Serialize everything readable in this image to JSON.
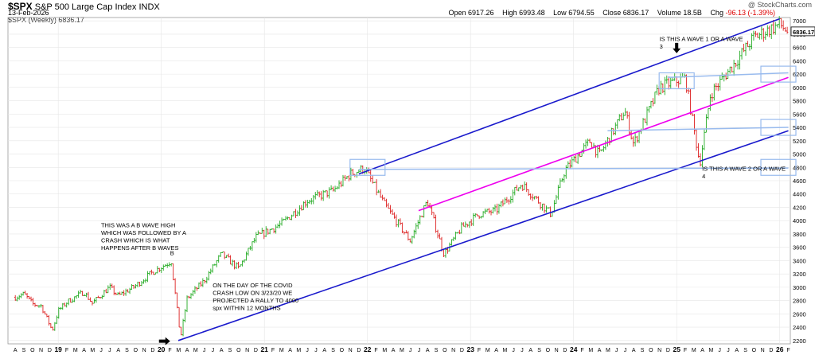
{
  "header": {
    "symbol": "$SPX",
    "name": "S&P 500 Large Cap Index",
    "exchange": "INDX",
    "date": "13-Feb-2026",
    "legend": "$SPX (Weekly) 6836.17",
    "brand": "@ StockCharts.com",
    "open_label": "Open",
    "open": "6917.26",
    "high_label": "High",
    "high": "6993.48",
    "low_label": "Low",
    "low": "6794.55",
    "close_label": "Close",
    "close": "6836.17",
    "volume_label": "Volume",
    "volume": "18.5B",
    "chg_label": "Chg",
    "chg": "-96.13 (-1.39%)"
  },
  "colors": {
    "up_bar": "#22aa22",
    "down_bar": "#dd2222",
    "channel": "#1a1acc",
    "midline": "#ee00ee",
    "level": "#99bbee",
    "box": "#99bbee",
    "last_price_box": "#000000"
  },
  "chart_data": {
    "type": "ohlc-weekly",
    "ylim": [
      2150,
      7050
    ],
    "y_ticks": [
      2200,
      2400,
      2600,
      2800,
      3000,
      3200,
      3400,
      3600,
      3800,
      4000,
      4200,
      4400,
      4600,
      4800,
      5000,
      5200,
      5400,
      5600,
      5800,
      6000,
      6200,
      6400,
      6600,
      6800,
      7000
    ],
    "last_price": "6836.17",
    "x_labels": [
      "A",
      "S",
      "O",
      "N",
      "D",
      "19",
      "F",
      "M",
      "A",
      "M",
      "J",
      "J",
      "A",
      "S",
      "O",
      "N",
      "D",
      "20",
      "F",
      "M",
      "A",
      "M",
      "J",
      "J",
      "A",
      "S",
      "O",
      "N",
      "D",
      "21",
      "F",
      "M",
      "A",
      "M",
      "J",
      "J",
      "A",
      "S",
      "O",
      "N",
      "D",
      "22",
      "F",
      "M",
      "A",
      "M",
      "J",
      "J",
      "A",
      "S",
      "O",
      "N",
      "D",
      "23",
      "F",
      "M",
      "A",
      "M",
      "J",
      "J",
      "A",
      "S",
      "O",
      "N",
      "D",
      "24",
      "F",
      "M",
      "A",
      "M",
      "J",
      "J",
      "A",
      "S",
      "O",
      "N",
      "D",
      "25",
      "F",
      "M",
      "A",
      "M",
      "J",
      "J",
      "A",
      "S",
      "O",
      "N",
      "D",
      "26",
      "F"
    ],
    "price_path": [
      [
        "2018-08",
        2850
      ],
      [
        "2018-09",
        2900
      ],
      [
        "2018-10",
        2750
      ],
      [
        "2018-11",
        2720
      ],
      [
        "2018-12-24",
        2350
      ],
      [
        "2019-01",
        2650
      ],
      [
        "2019-02",
        2780
      ],
      [
        "2019-04",
        2930
      ],
      [
        "2019-05",
        2760
      ],
      [
        "2019-07",
        3000
      ],
      [
        "2019-08",
        2870
      ],
      [
        "2019-10",
        3020
      ],
      [
        "2019-12",
        3230
      ],
      [
        "2020-02-19",
        3390
      ],
      [
        "2020-03-23",
        2240
      ],
      [
        "2020-04",
        2830
      ],
      [
        "2020-06",
        3100
      ],
      [
        "2020-08",
        3500
      ],
      [
        "2020-10",
        3280
      ],
      [
        "2020-12",
        3750
      ],
      [
        "2021-03",
        3950
      ],
      [
        "2021-06",
        4300
      ],
      [
        "2021-09",
        4450
      ],
      [
        "2021-11",
        4700
      ],
      [
        "2022-01-03",
        4790
      ],
      [
        "2022-03",
        4250
      ],
      [
        "2022-06",
        3700
      ],
      [
        "2022-08",
        4300
      ],
      [
        "2022-10-13",
        3500
      ],
      [
        "2022-12",
        3900
      ],
      [
        "2023-02",
        4100
      ],
      [
        "2023-04",
        4150
      ],
      [
        "2023-07",
        4550
      ],
      [
        "2023-10-27",
        4100
      ],
      [
        "2023-12",
        4750
      ],
      [
        "2024-03",
        5200
      ],
      [
        "2024-04",
        4980
      ],
      [
        "2024-07",
        5650
      ],
      [
        "2024-08",
        5150
      ],
      [
        "2024-11",
        6000
      ],
      [
        "2025-01",
        6100
      ],
      [
        "2025-02",
        6140
      ],
      [
        "2025-04-07",
        4850
      ],
      [
        "2025-05",
        5900
      ],
      [
        "2025-08",
        6400
      ],
      [
        "2025-10",
        6750
      ],
      [
        "2026-01",
        6950
      ],
      [
        "2026-02-13",
        6836
      ]
    ],
    "trendlines": [
      {
        "kind": "channel-upper",
        "from": [
          "2021-12",
          4700
        ],
        "to": [
          "2026-01",
          7030
        ]
      },
      {
        "kind": "channel-lower",
        "from": [
          "2020-03",
          2200
        ],
        "to": [
          "2026-02",
          5350
        ]
      },
      {
        "kind": "midline",
        "from": [
          "2022-07",
          4150
        ],
        "to": [
          "2026-02",
          6150
        ]
      },
      {
        "kind": "level",
        "from": [
          "2021-12",
          4770
        ],
        "to": [
          "2026-02",
          4790
        ]
      },
      {
        "kind": "level",
        "from": [
          "2024-05",
          5350
        ],
        "to": [
          "2026-02",
          5400
        ]
      },
      {
        "kind": "level",
        "from": [
          "2024-12",
          6150
        ],
        "to": [
          "2026-02",
          6220
        ]
      }
    ],
    "boxes": [
      {
        "at": [
          "2022-01",
          4800
        ]
      },
      {
        "at": [
          "2025-01",
          6100
        ]
      },
      {
        "at": [
          "2026-02",
          4800
        ]
      },
      {
        "at": [
          "2026-02",
          5400
        ]
      },
      {
        "at": [
          "2026-02",
          6200
        ]
      }
    ],
    "arrows": [
      {
        "direction": "right",
        "at": [
          "2020-02",
          2190
        ]
      },
      {
        "direction": "down",
        "at": [
          "2025-01",
          6550
        ]
      }
    ],
    "annotations": [
      {
        "text": "B",
        "at": [
          "2020-02",
          3480
        ]
      },
      {
        "text": "THIS WAS A B WAVE HIGH WHICH WAS FOLLOWED BY A CRASH WHICH IS WHAT HAPPENS AFTER B WAVES",
        "at": [
          "2019-06",
          3900
        ]
      },
      {
        "text": "ON THE DAY OF THE COVID CRASH LOW ON 3/23/20 WE PROJECTED A RALLY TO 4000 spx WITHIN 12 MONTHS",
        "at": [
          "2020-07",
          3000
        ]
      },
      {
        "text": "IS THIS A WAVE 1 OR A WAVE 3",
        "at": [
          "2024-11",
          6700
        ]
      },
      {
        "text": "IS THIS A WAVE 2 OR A WAVE 4",
        "at": [
          "2025-04",
          4750
        ]
      }
    ]
  }
}
